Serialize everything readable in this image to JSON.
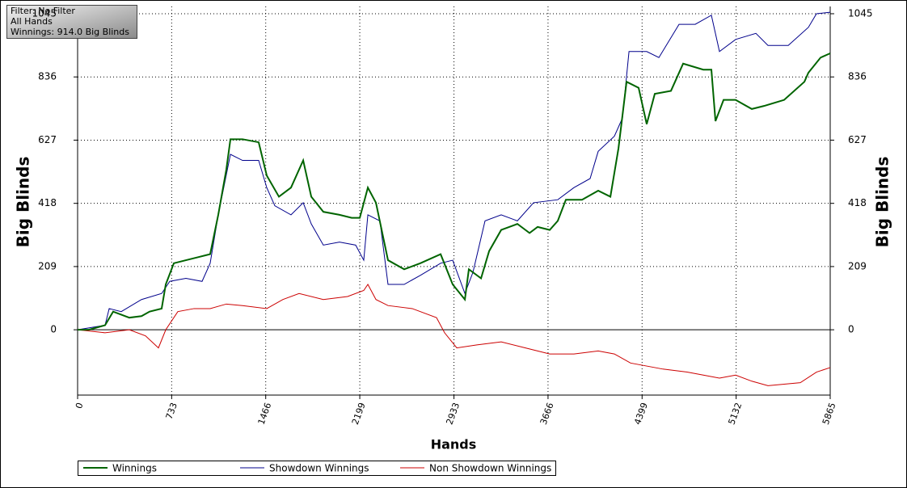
{
  "chart_data": {
    "type": "line",
    "annotations": [
      "Filter: No Filter",
      "All Hands",
      "Winnings: 914.0 Big Blinds"
    ],
    "xlabel": "Hands",
    "ylabel": "Big Blinds",
    "y2label": "Big Blinds",
    "xlim": [
      0,
      5865
    ],
    "ylim": [
      -216,
      1069
    ],
    "y2lim": [
      -216,
      1069
    ],
    "xticks": [
      0,
      733,
      1466,
      2199,
      2933,
      3666,
      4399,
      5132,
      5865
    ],
    "yticks": [
      0,
      209,
      418,
      627,
      836,
      1045
    ],
    "y2ticks": [
      0,
      209,
      418,
      627,
      836,
      1045
    ],
    "grid": true,
    "legend": "bottom",
    "series": [
      {
        "name": "Winnings",
        "color": "#006400",
        "x": [
          0,
          88,
          214,
          277,
          403,
          498,
          561,
          655,
          687,
          750,
          844,
          939,
          1033,
          1096,
          1159,
          1191,
          1285,
          1411,
          1474,
          1569,
          1663,
          1758,
          1821,
          1915,
          2041,
          2136,
          2199,
          2262,
          2325,
          2419,
          2545,
          2671,
          2829,
          2923,
          3018,
          3049,
          3144,
          3207,
          3301,
          3427,
          3522,
          3585,
          3679,
          3742,
          3805,
          3931,
          4057,
          4152,
          4215,
          4278,
          4372,
          4435,
          4498,
          4624,
          4719,
          4876,
          4939,
          4971,
          5034,
          5128,
          5254,
          5349,
          5506,
          5664,
          5695,
          5790,
          5865
        ],
        "values": [
          0,
          0,
          15,
          60,
          40,
          45,
          60,
          70,
          150,
          220,
          230,
          240,
          250,
          380,
          530,
          630,
          630,
          620,
          510,
          440,
          470,
          560,
          440,
          390,
          380,
          370,
          370,
          470,
          420,
          230,
          200,
          220,
          250,
          150,
          100,
          200,
          170,
          260,
          330,
          350,
          320,
          340,
          330,
          360,
          430,
          430,
          460,
          440,
          600,
          820,
          800,
          680,
          780,
          790,
          880,
          860,
          860,
          690,
          760,
          760,
          730,
          740,
          760,
          820,
          850,
          900,
          914
        ]
      },
      {
        "name": "Showdown Winnings",
        "color": "#00008b",
        "x": [
          0,
          214,
          246,
          340,
          498,
          655,
          718,
          844,
          970,
          1033,
          1096,
          1191,
          1285,
          1411,
          1474,
          1537,
          1663,
          1758,
          1821,
          1915,
          2041,
          2167,
          2230,
          2262,
          2356,
          2419,
          2545,
          2671,
          2829,
          2923,
          3018,
          3081,
          3175,
          3301,
          3427,
          3553,
          3742,
          3868,
          3994,
          4057,
          4183,
          4246,
          4297,
          4435,
          4530,
          4687,
          4813,
          4939,
          5002,
          5128,
          5286,
          5380,
          5538,
          5695,
          5758,
          5865
        ],
        "values": [
          0,
          15,
          70,
          60,
          100,
          120,
          160,
          170,
          160,
          220,
          380,
          580,
          560,
          560,
          470,
          410,
          380,
          420,
          350,
          280,
          290,
          280,
          230,
          380,
          360,
          150,
          150,
          180,
          220,
          230,
          120,
          190,
          360,
          380,
          360,
          420,
          430,
          470,
          500,
          590,
          640,
          700,
          920,
          920,
          900,
          1010,
          1010,
          1040,
          920,
          960,
          980,
          940,
          940,
          1000,
          1045,
          1050
        ]
      },
      {
        "name": "Non Showdown Winnings",
        "color": "#cc0000",
        "x": [
          0,
          214,
          403,
          529,
          630,
          687,
          781,
          907,
          1033,
          1159,
          1285,
          1474,
          1600,
          1726,
          1915,
          2104,
          2230,
          2262,
          2325,
          2419,
          2608,
          2797,
          2860,
          2955,
          3112,
          3301,
          3490,
          3679,
          3868,
          4057,
          4183,
          4309,
          4435,
          4561,
          4750,
          4876,
          5002,
          5128,
          5254,
          5380,
          5506,
          5632,
          5758,
          5865
        ],
        "values": [
          0,
          -10,
          0,
          -20,
          -60,
          0,
          60,
          70,
          70,
          85,
          80,
          70,
          100,
          120,
          100,
          110,
          130,
          150,
          100,
          80,
          70,
          40,
          -10,
          -60,
          -50,
          -40,
          -60,
          -80,
          -80,
          -70,
          -80,
          -110,
          -120,
          -130,
          -140,
          -150,
          -160,
          -150,
          -170,
          -185,
          -180,
          -175,
          -140,
          -125
        ]
      }
    ]
  }
}
